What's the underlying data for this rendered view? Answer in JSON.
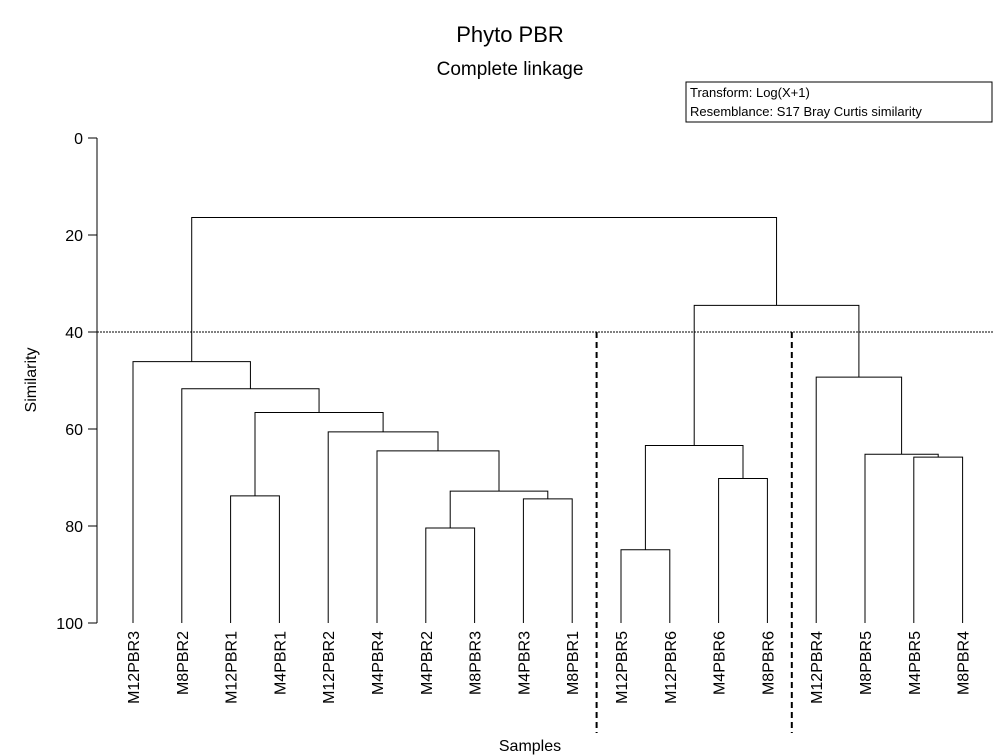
{
  "chart_data": {
    "type": "dendrogram",
    "title": "Phyto PBR",
    "subtitle": "Complete linkage",
    "legend_lines": [
      "Transform: Log(X+1)",
      "Resemblance: S17 Bray Curtis similarity"
    ],
    "x_label": "Samples",
    "y_label": "Similarity",
    "categories": [
      "M12PBR3",
      "M8PBR2",
      "M12PBR1",
      "M4PBR1",
      "M12PBR2",
      "M4PBR4",
      "M4PBR2",
      "M8PBR3",
      "M4PBR3",
      "M8PBR1",
      "M12PBR5",
      "M12PBR6",
      "M4PBR6",
      "M8PBR6",
      "M12PBR4",
      "M8PBR5",
      "M4PBR5",
      "M8PBR4"
    ],
    "merges": [
      {
        "a": 6,
        "b": 7,
        "value": 80.4
      },
      {
        "a": 8,
        "b": 9,
        "value": 74.4
      },
      {
        "a": 18,
        "b": 19,
        "value": 72.8
      },
      {
        "a": 5,
        "b": 20,
        "value": 64.5
      },
      {
        "a": 4,
        "b": 21,
        "value": 60.6
      },
      {
        "a": 2,
        "b": 3,
        "value": 73.8
      },
      {
        "a": 23,
        "b": 22,
        "value": 56.6
      },
      {
        "a": 1,
        "b": 24,
        "value": 51.7
      },
      {
        "a": 0,
        "b": 25,
        "value": 46.1
      },
      {
        "a": 10,
        "b": 11,
        "value": 84.9
      },
      {
        "a": 12,
        "b": 13,
        "value": 70.2
      },
      {
        "a": 27,
        "b": 28,
        "value": 63.4
      },
      {
        "a": 16,
        "b": 17,
        "value": 65.8
      },
      {
        "a": 15,
        "b": 30,
        "value": 65.2
      },
      {
        "a": 14,
        "b": 31,
        "value": 49.3
      },
      {
        "a": 29,
        "b": 32,
        "value": 34.5
      },
      {
        "a": 26,
        "b": 33,
        "value": 16.4
      }
    ],
    "threshold": 40,
    "ylim": [
      0,
      100
    ],
    "yticks": [
      0,
      20,
      40,
      60,
      80,
      100
    ],
    "color": "#000000"
  }
}
